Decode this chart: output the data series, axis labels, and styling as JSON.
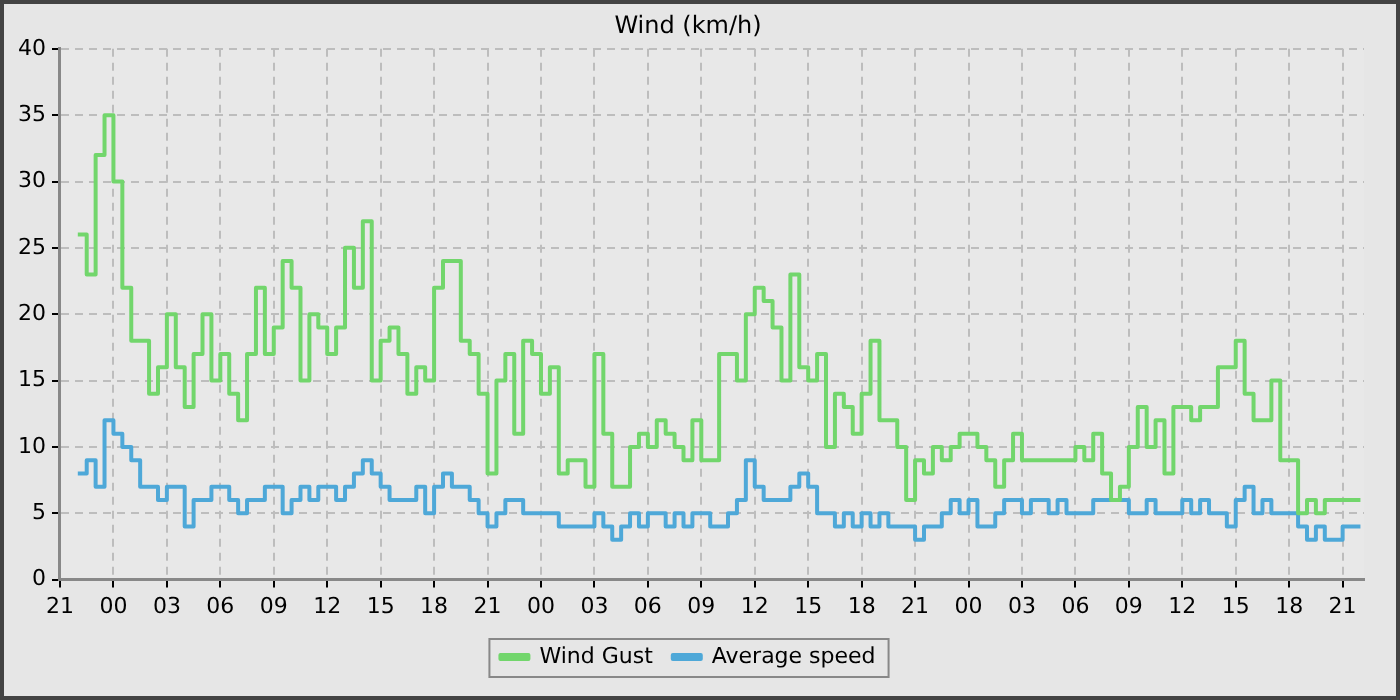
{
  "chart_data": {
    "type": "step",
    "title": "Wind (km/h)",
    "x": [
      "--01-01T22:00",
      "--01-01T22:30",
      "--01-01T23:00",
      "--01-01T23:30",
      "--01-02T00:00",
      "--01-02T00:30",
      "--01-02T01:00",
      "--01-02T01:30",
      "--01-02T02:00",
      "--01-02T02:30",
      "--01-02T03:00",
      "--01-02T03:30",
      "--01-02T04:00",
      "--01-02T04:30",
      "--01-02T05:00",
      "--01-02T05:30",
      "--01-02T06:00",
      "--01-02T06:30",
      "--01-02T07:00",
      "--01-02T07:30",
      "--01-02T08:00",
      "--01-02T08:30",
      "--01-02T09:00",
      "--01-02T09:30",
      "--01-02T10:00",
      "--01-02T10:30",
      "--01-02T11:00",
      "--01-02T11:30",
      "--01-02T12:00",
      "--01-02T12:30",
      "--01-02T13:00",
      "--01-02T13:30",
      "--01-02T14:00",
      "--01-02T14:30",
      "--01-02T15:00",
      "--01-02T15:30",
      "--01-02T16:00",
      "--01-02T16:30",
      "--01-02T17:00",
      "--01-02T17:30",
      "--01-02T18:00",
      "--01-02T18:30",
      "--01-02T19:00",
      "--01-02T19:30",
      "--01-02T20:00",
      "--01-02T20:30",
      "--01-02T21:00",
      "--01-02T21:30",
      "--01-02T22:00",
      "--01-02T22:30",
      "--01-02T23:00",
      "--01-02T23:30",
      "--01-03T00:00",
      "--01-03T00:30",
      "--01-03T01:00",
      "--01-03T01:30",
      "--01-03T02:00",
      "--01-03T02:30",
      "--01-03T03:00",
      "--01-03T03:30",
      "--01-03T04:00",
      "--01-03T04:30",
      "--01-03T05:00",
      "--01-03T05:30",
      "--01-03T06:00",
      "--01-03T06:30",
      "--01-03T07:00",
      "--01-03T07:30",
      "--01-03T08:00",
      "--01-03T08:30",
      "--01-03T09:00",
      "--01-03T09:30",
      "--01-03T10:00",
      "--01-03T10:30",
      "--01-03T11:00",
      "--01-03T11:30",
      "--01-03T12:00",
      "--01-03T12:30",
      "--01-03T13:00",
      "--01-03T13:30",
      "--01-03T14:00",
      "--01-03T14:30",
      "--01-03T15:00",
      "--01-03T15:30",
      "--01-03T16:00",
      "--01-03T16:30",
      "--01-03T17:00",
      "--01-03T17:30",
      "--01-03T18:00",
      "--01-03T18:30",
      "--01-03T19:00",
      "--01-03T19:30",
      "--01-03T20:00",
      "--01-03T20:30",
      "--01-03T21:00",
      "--01-03T21:30",
      "--01-03T22:00",
      "--01-03T22:30",
      "--01-03T23:00",
      "--01-03T23:30",
      "--01-04T00:00",
      "--01-04T00:30",
      "--01-04T01:00",
      "--01-04T01:30",
      "--01-04T02:00",
      "--01-04T02:30",
      "--01-04T03:00",
      "--01-04T03:30",
      "--01-04T04:00",
      "--01-04T04:30",
      "--01-04T05:00",
      "--01-04T05:30",
      "--01-04T06:00",
      "--01-04T06:30",
      "--01-04T07:00",
      "--01-04T07:30",
      "--01-04T08:00",
      "--01-04T08:30",
      "--01-04T09:00",
      "--01-04T09:30",
      "--01-04T10:00",
      "--01-04T10:30",
      "--01-04T11:00",
      "--01-04T11:30",
      "--01-04T12:00",
      "--01-04T12:30",
      "--01-04T13:00",
      "--01-04T13:30",
      "--01-04T14:00",
      "--01-04T14:30",
      "--01-04T15:00",
      "--01-04T15:30",
      "--01-04T16:00",
      "--01-04T16:30",
      "--01-04T17:00",
      "--01-04T17:30",
      "--01-04T18:00",
      "--01-04T18:30",
      "--01-04T19:00",
      "--01-04T19:30",
      "--01-04T20:00",
      "--01-04T20:30",
      "--01-04T21:00",
      "--01-04T21:30",
      "--01-04T22:00"
    ],
    "series": [
      {
        "name": "Wind Gust",
        "color": "#72d66c",
        "values": [
          26,
          23,
          32,
          35,
          30,
          22,
          18,
          18,
          14,
          16,
          20,
          16,
          13,
          17,
          20,
          15,
          17,
          14,
          12,
          17,
          22,
          17,
          19,
          24,
          22,
          15,
          20,
          19,
          17,
          19,
          25,
          22,
          27,
          15,
          18,
          19,
          17,
          14,
          16,
          15,
          22,
          24,
          24,
          18,
          17,
          14,
          8,
          15,
          17,
          11,
          18,
          17,
          14,
          16,
          8,
          9,
          9,
          7,
          17,
          11,
          7,
          7,
          10,
          11,
          10,
          12,
          11,
          10,
          9,
          12,
          9,
          9,
          17,
          17,
          15,
          20,
          22,
          21,
          19,
          15,
          23,
          16,
          15,
          17,
          10,
          14,
          13,
          11,
          14,
          18,
          12,
          12,
          10,
          6,
          9,
          8,
          10,
          9,
          10,
          11,
          11,
          10,
          9,
          7,
          9,
          11,
          9,
          9,
          9,
          9,
          9,
          9,
          10,
          9,
          11,
          8,
          6,
          7,
          10,
          13,
          10,
          12,
          8,
          13,
          13,
          12,
          13,
          13,
          16,
          16,
          18,
          14,
          12,
          12,
          15,
          9,
          9,
          5,
          6,
          5,
          6,
          6,
          6,
          6,
          6
        ]
      },
      {
        "name": "Average speed",
        "color": "#4ea8d8",
        "values": [
          8,
          9,
          7,
          12,
          11,
          10,
          9,
          7,
          7,
          6,
          7,
          7,
          4,
          6,
          6,
          7,
          7,
          6,
          5,
          6,
          6,
          7,
          7,
          5,
          6,
          7,
          6,
          7,
          7,
          6,
          7,
          8,
          9,
          8,
          7,
          6,
          6,
          6,
          7,
          5,
          7,
          8,
          7,
          7,
          6,
          5,
          4,
          5,
          6,
          6,
          5,
          5,
          5,
          5,
          4,
          4,
          4,
          4,
          5,
          4,
          3,
          4,
          5,
          4,
          5,
          5,
          4,
          5,
          4,
          5,
          5,
          4,
          4,
          5,
          6,
          9,
          7,
          6,
          6,
          6,
          7,
          8,
          7,
          5,
          5,
          4,
          5,
          4,
          5,
          4,
          5,
          4,
          4,
          4,
          3,
          4,
          4,
          5,
          6,
          5,
          6,
          4,
          4,
          5,
          6,
          6,
          5,
          6,
          6,
          5,
          6,
          5,
          5,
          5,
          6,
          6,
          6,
          6,
          5,
          5,
          6,
          5,
          5,
          5,
          6,
          5,
          6,
          5,
          5,
          4,
          6,
          7,
          5,
          6,
          5,
          5,
          5,
          4,
          3,
          4,
          3,
          3,
          4,
          4,
          4
        ]
      }
    ],
    "xlim": [
      "--01-01T21:00",
      "--01-04T22:12"
    ],
    "xticks": [
      {
        "value": "--01-01T21:00",
        "label": "21"
      },
      {
        "value": "--01-02T00:00",
        "label": "00"
      },
      {
        "value": "--01-02T03:00",
        "label": "03"
      },
      {
        "value": "--01-02T06:00",
        "label": "06"
      },
      {
        "value": "--01-02T09:00",
        "label": "09"
      },
      {
        "value": "--01-02T12:00",
        "label": "12"
      },
      {
        "value": "--01-02T15:00",
        "label": "15"
      },
      {
        "value": "--01-02T18:00",
        "label": "18"
      },
      {
        "value": "--01-02T21:00",
        "label": "21"
      },
      {
        "value": "--01-03T00:00",
        "label": "00"
      },
      {
        "value": "--01-03T03:00",
        "label": "03"
      },
      {
        "value": "--01-03T06:00",
        "label": "06"
      },
      {
        "value": "--01-03T09:00",
        "label": "09"
      },
      {
        "value": "--01-03T12:00",
        "label": "12"
      },
      {
        "value": "--01-03T15:00",
        "label": "15"
      },
      {
        "value": "--01-03T18:00",
        "label": "18"
      },
      {
        "value": "--01-03T21:00",
        "label": "21"
      },
      {
        "value": "--01-04T00:00",
        "label": "00"
      },
      {
        "value": "--01-04T03:00",
        "label": "03"
      },
      {
        "value": "--01-04T06:00",
        "label": "06"
      },
      {
        "value": "--01-04T09:00",
        "label": "09"
      },
      {
        "value": "--01-04T12:00",
        "label": "12"
      },
      {
        "value": "--01-04T15:00",
        "label": "15"
      },
      {
        "value": "--01-04T18:00",
        "label": "18"
      },
      {
        "value": "--01-04T21:00",
        "label": "21"
      }
    ],
    "ylim": [
      0,
      40
    ],
    "yticks": [
      0,
      5,
      10,
      15,
      20,
      25,
      30,
      35,
      40
    ],
    "grid": true,
    "legend": "bottom",
    "line_style": "solid",
    "marker": "none"
  }
}
